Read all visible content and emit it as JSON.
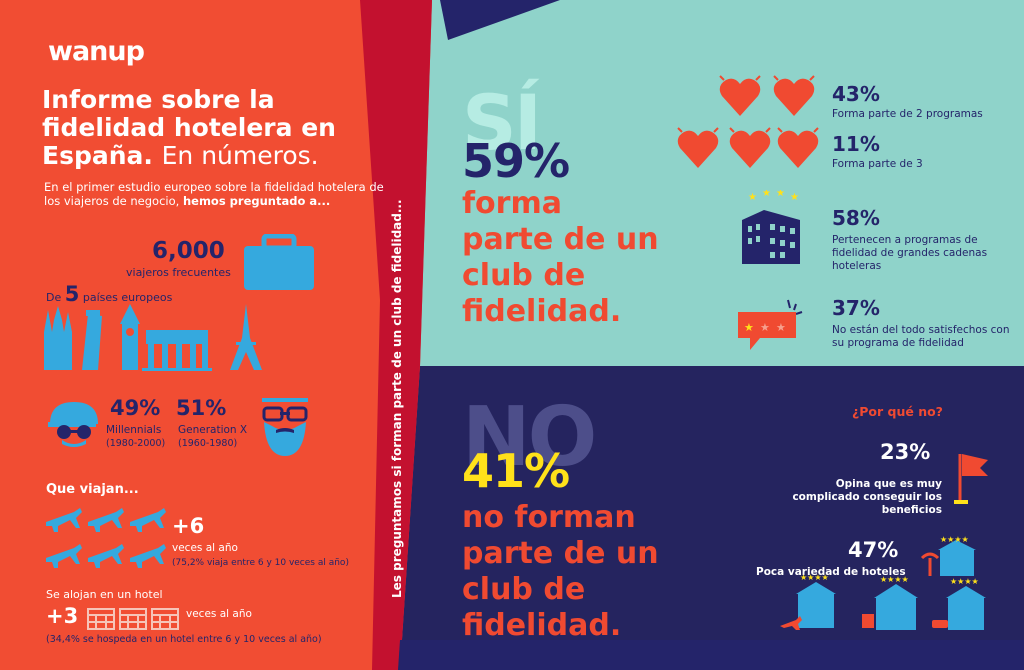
{
  "brand": "wanup",
  "title": {
    "bold": "Informe sobre la fidelidad hotelera en España.",
    "light": "En números."
  },
  "intro": {
    "text": "En el primer estudio europeo sobre la fidelidad hotelera de los viajeros de negocio,",
    "bold": "hemos preguntado a..."
  },
  "travelers": {
    "count": "6,000",
    "label": "viajeros frecuentes"
  },
  "countries": {
    "prefix": "De",
    "count": "5",
    "label": "países europeos"
  },
  "generations": {
    "millennials": {
      "pct": "49%",
      "label": "Millennials",
      "years": "(1980-2000)"
    },
    "genx": {
      "pct": "51%",
      "label": "Generation X",
      "years": "(1960-1980)"
    }
  },
  "travel": {
    "heading": "Que viajan...",
    "number": "+6",
    "label": "veces al año",
    "note": "(75,2% viaja entre 6 y 10 veces al año)"
  },
  "hotel": {
    "heading": "Se alojan en un hotel",
    "number": "+3",
    "label": "veces al año",
    "note": "(34,4% se hospeda en un hotel entre 6 y 10 veces al año)"
  },
  "vertical_text": "Les preguntamos si forman parte de un club de fidelidad...",
  "yes": {
    "word": "SÍ",
    "pct": "59%",
    "desc": "forma parte de un club de fidelidad.",
    "stats": [
      {
        "value": "43%",
        "label": "Forma parte de 2 programas"
      },
      {
        "value": "11%",
        "label": "Forma parte de 3"
      },
      {
        "value": "58%",
        "label": "Pertenecen a programas de fidelidad de grandes cadenas hoteleras"
      },
      {
        "value": "37%",
        "label": "No están del todo satisfechos con su programa de fidelidad"
      }
    ]
  },
  "no": {
    "word": "NO",
    "pct": "41%",
    "desc": "no forman parte de un club de fidelidad.",
    "why_heading": "¿Por qué no?",
    "reasons": [
      {
        "value": "23%",
        "label": "Opina que es muy complicado conseguir los beneficios"
      },
      {
        "value": "47%",
        "label": "Poca variedad de hoteles"
      }
    ]
  },
  "colors": {
    "orange": "#f14d33",
    "teal": "#8fd3ca",
    "navy": "#24246a",
    "crimson": "#c3112f",
    "blue": "#35a9de",
    "yellow": "#ffe11a"
  }
}
